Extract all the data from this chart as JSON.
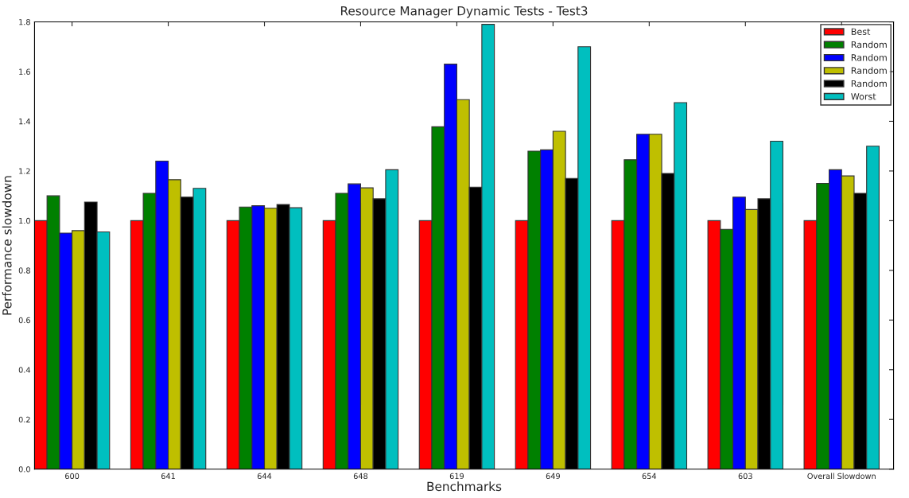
{
  "chart_data": {
    "type": "bar",
    "title": "Resource Manager Dynamic Tests - Test3",
    "xlabel": "Benchmarks",
    "ylabel": "Performance slowdown",
    "categories": [
      "600",
      "641",
      "644",
      "648",
      "619",
      "649",
      "654",
      "603",
      "Overall Slowdown"
    ],
    "series": [
      {
        "name": "Best",
        "color": "#ff0000",
        "values": [
          1.0,
          1.0,
          1.0,
          1.0,
          1.0,
          1.0,
          1.0,
          1.0,
          1.0
        ]
      },
      {
        "name": "Random",
        "color": "#008000",
        "values": [
          1.1,
          1.11,
          1.055,
          1.11,
          1.378,
          1.28,
          1.245,
          0.965,
          1.15
        ]
      },
      {
        "name": "Random",
        "color": "#0000ff",
        "values": [
          0.95,
          1.24,
          1.06,
          1.148,
          1.63,
          1.285,
          1.348,
          1.095,
          1.205
        ]
      },
      {
        "name": "Random",
        "color": "#bfbf00",
        "values": [
          0.96,
          1.165,
          1.05,
          1.132,
          1.487,
          1.36,
          1.348,
          1.045,
          1.18
        ]
      },
      {
        "name": "Random",
        "color": "#000000",
        "values": [
          1.075,
          1.095,
          1.065,
          1.088,
          1.135,
          1.17,
          1.19,
          1.088,
          1.11
        ]
      },
      {
        "name": "Worst",
        "color": "#00bfbf",
        "values": [
          0.955,
          1.13,
          1.052,
          1.205,
          1.79,
          1.7,
          1.475,
          1.32,
          1.3
        ]
      }
    ],
    "ylim": [
      0,
      1.8
    ],
    "yticks": [
      {
        "value": 0,
        "label": "0.0"
      },
      {
        "value": 0.2,
        "label": "0.2"
      },
      {
        "value": 0.4,
        "label": "0.4"
      },
      {
        "value": 0.6,
        "label": "0.6"
      },
      {
        "value": 0.8,
        "label": "0.8"
      },
      {
        "value": 1.0,
        "label": "1.0"
      },
      {
        "value": 1.2,
        "label": "1.2"
      },
      {
        "value": 1.4,
        "label": "1.4"
      },
      {
        "value": 1.6,
        "label": "1.6"
      },
      {
        "value": 1.8,
        "label": "1.8"
      }
    ],
    "grid": false,
    "legend": "top right"
  }
}
